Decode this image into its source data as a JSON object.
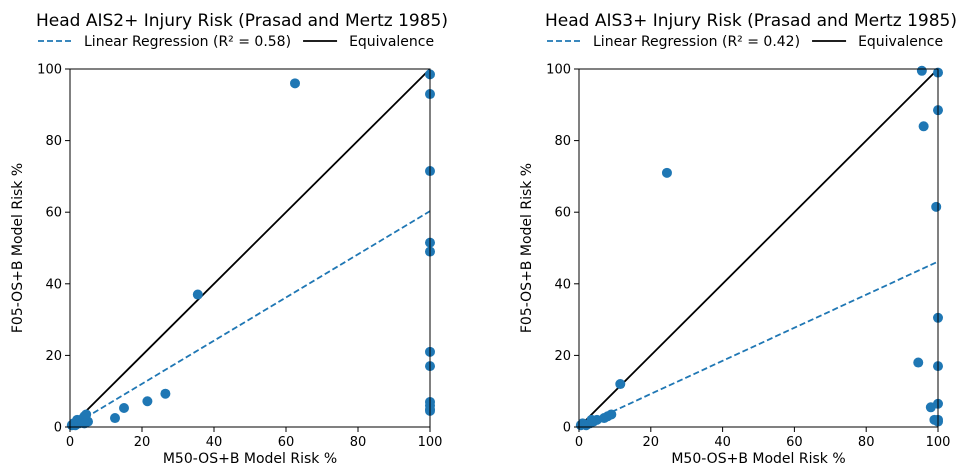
{
  "colors": {
    "point": "#1f77b4",
    "regression": "#1f77b4",
    "equivalence": "#000000"
  },
  "chart_data": [
    {
      "type": "scatter",
      "title": "Head AIS2+ Injury Risk (Prasad and Mertz 1985)",
      "xlabel": "M50-OS+B Model Risk %",
      "ylabel": "F05-OS+B Model Risk %",
      "xlim": [
        0,
        100
      ],
      "ylim": [
        0,
        100
      ],
      "xticks": [
        "0",
        "20",
        "40",
        "60",
        "80",
        "100"
      ],
      "yticks": [
        "0",
        "20",
        "40",
        "60",
        "80",
        "100"
      ],
      "legend": {
        "placement": "top",
        "entries": [
          {
            "label": "Linear Regression (R² = 0.58)",
            "style": "dashed"
          },
          {
            "label": "Equivalence",
            "style": "solid"
          }
        ]
      },
      "regression_line": {
        "x": [
          0,
          100
        ],
        "y": [
          0,
          60.3
        ]
      },
      "equivalence_line": {
        "x": [
          0,
          100
        ],
        "y": [
          0,
          100
        ]
      },
      "points": {
        "x": [
          0.5,
          1,
          1.5,
          2,
          2.5,
          3,
          3.5,
          4,
          4.5,
          5,
          4.5,
          4,
          12.5,
          15,
          21.5,
          26.5,
          35.5,
          62.5,
          100,
          100,
          100,
          100,
          100,
          100,
          100,
          100,
          100,
          100,
          100
        ],
        "y": [
          0.5,
          1,
          0.5,
          2,
          1,
          2,
          1.5,
          3,
          2,
          1.5,
          3.5,
          1,
          2.5,
          5.3,
          7.2,
          9.3,
          37,
          96,
          98.5,
          93,
          71.5,
          51.5,
          49,
          21,
          17,
          7,
          6,
          5,
          4.5
        ]
      }
    },
    {
      "type": "scatter",
      "title": "Head AIS3+ Injury Risk (Prasad and Mertz 1985)",
      "xlabel": "M50-OS+B Model Risk %",
      "ylabel": "F05-OS+B Model Risk %",
      "xlim": [
        0,
        100
      ],
      "ylim": [
        0,
        100
      ],
      "xticks": [
        "0",
        "20",
        "40",
        "60",
        "80",
        "100"
      ],
      "yticks": [
        "0",
        "20",
        "40",
        "60",
        "80",
        "100"
      ],
      "legend": {
        "placement": "top",
        "entries": [
          {
            "label": "Linear Regression (R² = 0.42)",
            "style": "dashed"
          },
          {
            "label": "Equivalence",
            "style": "solid"
          }
        ]
      },
      "regression_line": {
        "x": [
          0,
          100
        ],
        "y": [
          0,
          46.2
        ]
      },
      "equivalence_line": {
        "x": [
          0,
          100
        ],
        "y": [
          0,
          100
        ]
      },
      "points": {
        "x": [
          0.5,
          1,
          2,
          3,
          3.5,
          4,
          5,
          7,
          8,
          9,
          11.5,
          24.5,
          94.5,
          95.5,
          96,
          98,
          99,
          99.5,
          100,
          100,
          100,
          100,
          100,
          100,
          100
        ],
        "y": [
          0.5,
          1,
          0.5,
          1,
          2,
          1.5,
          2,
          2.5,
          3,
          3.5,
          12,
          71,
          18,
          99.5,
          84,
          5.5,
          2,
          61.5,
          99,
          88.5,
          30.5,
          17,
          6.5,
          2,
          1.5
        ]
      }
    }
  ]
}
